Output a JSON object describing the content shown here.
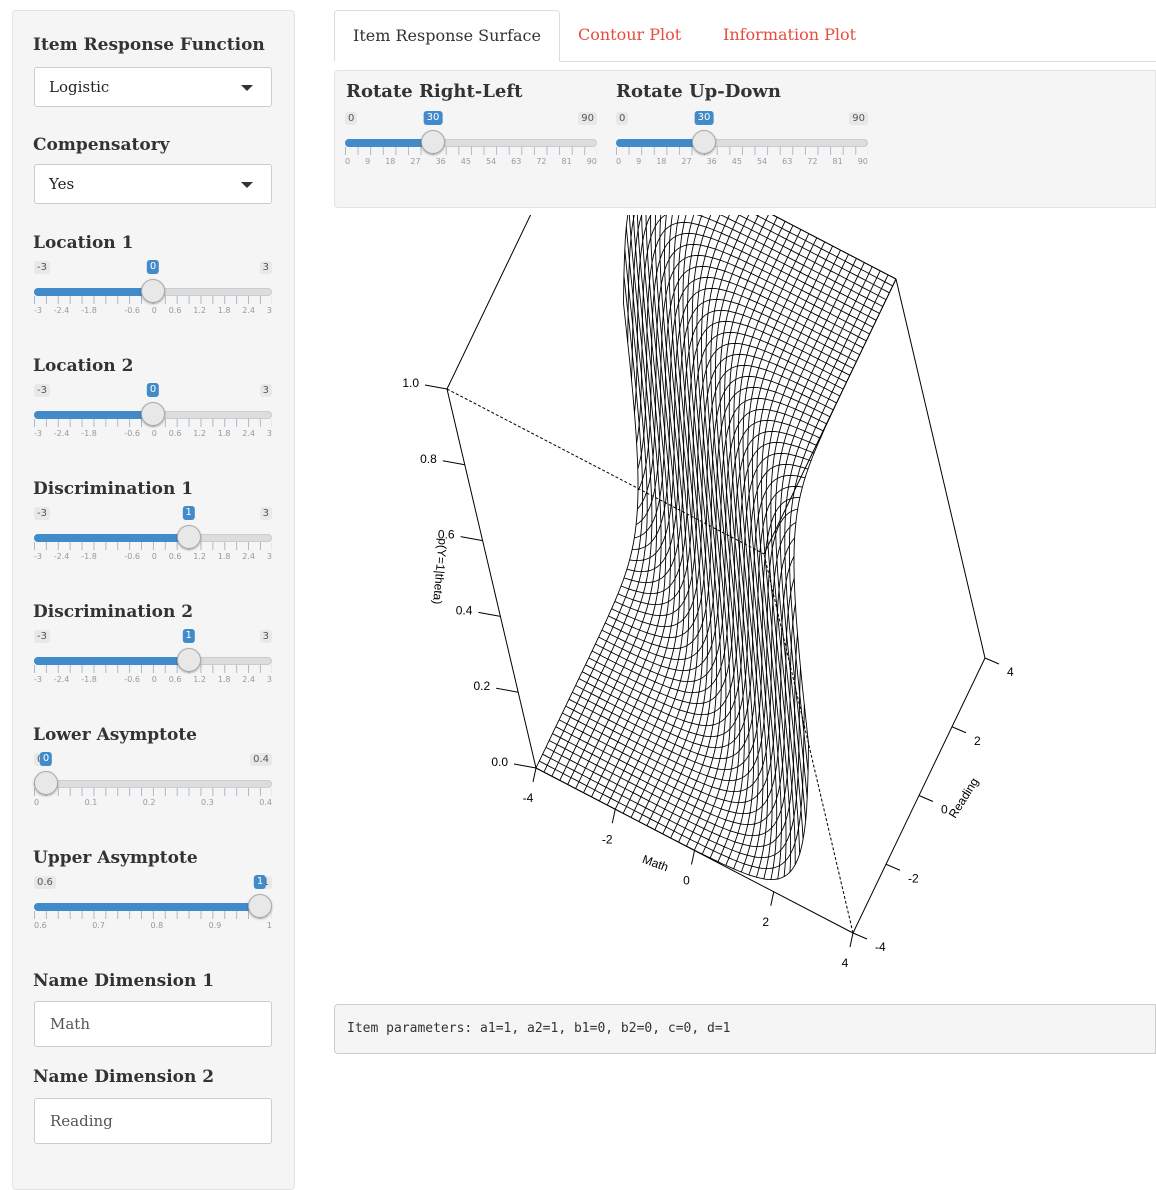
{
  "sidebar": {
    "irf": {
      "label": "Item Response Function",
      "value": "Logistic"
    },
    "compensatory": {
      "label": "Compensatory",
      "value": "Yes"
    },
    "sliders": [
      {
        "label": "Location 1",
        "min": -3,
        "max": 3,
        "value": 0,
        "min_label": "-3",
        "max_label": "3",
        "value_label": "0",
        "ticks": [
          "-3",
          "-2.4",
          "-1.8",
          "",
          "-0.6",
          "0",
          "0.6",
          "1.2",
          "1.8",
          "2.4",
          "3"
        ]
      },
      {
        "label": "Location 2",
        "min": -3,
        "max": 3,
        "value": 0,
        "min_label": "-3",
        "max_label": "3",
        "value_label": "0",
        "ticks": [
          "-3",
          "-2.4",
          "-1.8",
          "",
          "-0.6",
          "0",
          "0.6",
          "1.2",
          "1.8",
          "2.4",
          "3"
        ]
      },
      {
        "label": "Discrimination 1",
        "min": -3,
        "max": 3,
        "value": 1,
        "min_label": "-3",
        "max_label": "3",
        "value_label": "1",
        "ticks": [
          "-3",
          "-2.4",
          "-1.8",
          "",
          "-0.6",
          "0",
          "0.6",
          "1.2",
          "1.8",
          "2.4",
          "3"
        ]
      },
      {
        "label": "Discrimination 2",
        "min": -3,
        "max": 3,
        "value": 1,
        "min_label": "-3",
        "max_label": "3",
        "value_label": "1",
        "ticks": [
          "-3",
          "-2.4",
          "-1.8",
          "",
          "-0.6",
          "0",
          "0.6",
          "1.2",
          "1.8",
          "2.4",
          "3"
        ]
      },
      {
        "label": "Lower Asymptote",
        "min": 0,
        "max": 0.4,
        "value": 0,
        "min_label": "0",
        "max_label": "0.4",
        "value_label": "0",
        "ticks": [
          "0",
          "0.1",
          "0.2",
          "0.3",
          "0.4"
        ]
      },
      {
        "label": "Upper Asymptote",
        "min": 0.6,
        "max": 1,
        "value": 1,
        "min_label": "0.6",
        "max_label": "1",
        "value_label": "1",
        "ticks": [
          "0.6",
          "0.7",
          "0.8",
          "0.9",
          "1"
        ]
      }
    ],
    "name1": {
      "label": "Name Dimension 1",
      "value": "Math"
    },
    "name2": {
      "label": "Name Dimension 2",
      "value": "Reading"
    }
  },
  "tabs": [
    {
      "label": "Item Response Surface",
      "active": true
    },
    {
      "label": "Contour Plot",
      "active": false
    },
    {
      "label": "Information Plot",
      "active": false
    }
  ],
  "rotate": [
    {
      "label": "Rotate Right-Left",
      "min": 0,
      "max": 90,
      "value": 30,
      "min_label": "0",
      "max_label": "90",
      "value_label": "30",
      "ticks": [
        "0",
        "9",
        "18",
        "27",
        "36",
        "45",
        "54",
        "63",
        "72",
        "81",
        "90"
      ]
    },
    {
      "label": "Rotate Up-Down",
      "min": 0,
      "max": 90,
      "value": 30,
      "min_label": "0",
      "max_label": "90",
      "value_label": "30",
      "ticks": [
        "0",
        "9",
        "18",
        "27",
        "36",
        "45",
        "54",
        "63",
        "72",
        "81",
        "90"
      ]
    }
  ],
  "chart_data": {
    "type": "surface",
    "zlabel": "p(Y=1|theta)",
    "xlabel": "Math",
    "ylabel": "Reading",
    "x_ticks": [
      "-4",
      "-2",
      "0",
      "2",
      "4"
    ],
    "y_ticks": [
      "-4",
      "-2",
      "0",
      "2",
      "4"
    ],
    "z_ticks": [
      "0.0",
      "0.2",
      "0.4",
      "0.6",
      "0.8",
      "1.0"
    ],
    "xlim": [
      -4,
      4
    ],
    "ylim": [
      -4,
      4
    ],
    "zlim": [
      0,
      1
    ],
    "theta": 30,
    "phi": 30
  },
  "output": {
    "text": "Item parameters: a1=1, a2=1, b1=0, b2=0, c=0, d=1"
  }
}
